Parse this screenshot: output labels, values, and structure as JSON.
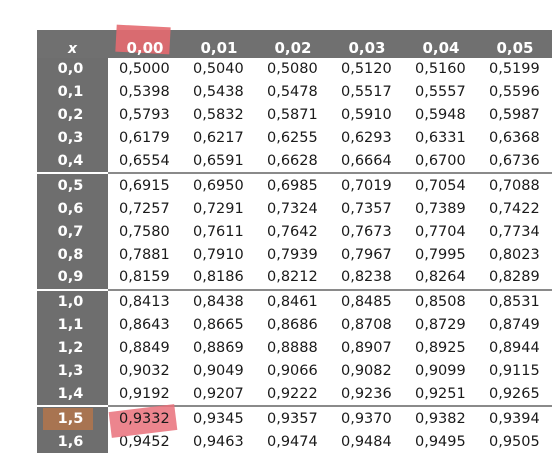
{
  "table": {
    "x_header": "x",
    "columns": [
      "0,00",
      "0,01",
      "0,02",
      "0,03",
      "0,04",
      "0,05"
    ],
    "rows": [
      {
        "x": "0,0",
        "values": [
          "0,5000",
          "0,5040",
          "0,5080",
          "0,5120",
          "0,5160",
          "0,5199"
        ]
      },
      {
        "x": "0,1",
        "values": [
          "0,5398",
          "0,5438",
          "0,5478",
          "0,5517",
          "0,5557",
          "0,5596"
        ]
      },
      {
        "x": "0,2",
        "values": [
          "0,5793",
          "0,5832",
          "0,5871",
          "0,5910",
          "0,5948",
          "0,5987"
        ]
      },
      {
        "x": "0,3",
        "values": [
          "0,6179",
          "0,6217",
          "0,6255",
          "0,6293",
          "0,6331",
          "0,6368"
        ]
      },
      {
        "x": "0,4",
        "values": [
          "0,6554",
          "0,6591",
          "0,6628",
          "0,6664",
          "0,6700",
          "0,6736"
        ]
      },
      {
        "x": "0,5",
        "values": [
          "0,6915",
          "0,6950",
          "0,6985",
          "0,7019",
          "0,7054",
          "0,7088"
        ]
      },
      {
        "x": "0,6",
        "values": [
          "0,7257",
          "0,7291",
          "0,7324",
          "0,7357",
          "0,7389",
          "0,7422"
        ]
      },
      {
        "x": "0,7",
        "values": [
          "0,7580",
          "0,7611",
          "0,7642",
          "0,7673",
          "0,7704",
          "0,7734"
        ]
      },
      {
        "x": "0,8",
        "values": [
          "0,7881",
          "0,7910",
          "0,7939",
          "0,7967",
          "0,7995",
          "0,8023"
        ]
      },
      {
        "x": "0,9",
        "values": [
          "0,8159",
          "0,8186",
          "0,8212",
          "0,8238",
          "0,8264",
          "0,8289"
        ]
      },
      {
        "x": "1,0",
        "values": [
          "0,8413",
          "0,8438",
          "0,8461",
          "0,8485",
          "0,8508",
          "0,8531"
        ]
      },
      {
        "x": "1,1",
        "values": [
          "0,8643",
          "0,8665",
          "0,8686",
          "0,8708",
          "0,8729",
          "0,8749"
        ]
      },
      {
        "x": "1,2",
        "values": [
          "0,8849",
          "0,8869",
          "0,8888",
          "0,8907",
          "0,8925",
          "0,8944"
        ]
      },
      {
        "x": "1,3",
        "values": [
          "0,9032",
          "0,9049",
          "0,9066",
          "0,9082",
          "0,9099",
          "0,9115"
        ]
      },
      {
        "x": "1,4",
        "values": [
          "0,9192",
          "0,9207",
          "0,9222",
          "0,9236",
          "0,9251",
          "0,9265"
        ]
      },
      {
        "x": "1,5",
        "values": [
          "0,9332",
          "0,9345",
          "0,9357",
          "0,9370",
          "0,9382",
          "0,9394"
        ]
      },
      {
        "x": "1,6",
        "values": [
          "0,9452",
          "0,9463",
          "0,9474",
          "0,9484",
          "0,9495",
          "0,9505"
        ]
      }
    ],
    "highlight": {
      "column": "0,00",
      "row": "1,5",
      "cell": "0,9332",
      "marker_color": "#e46a70"
    },
    "colors": {
      "header_bg": "#707070",
      "row_header_bg": "#6e6e6e",
      "separator": "#8a8a8a"
    }
  }
}
